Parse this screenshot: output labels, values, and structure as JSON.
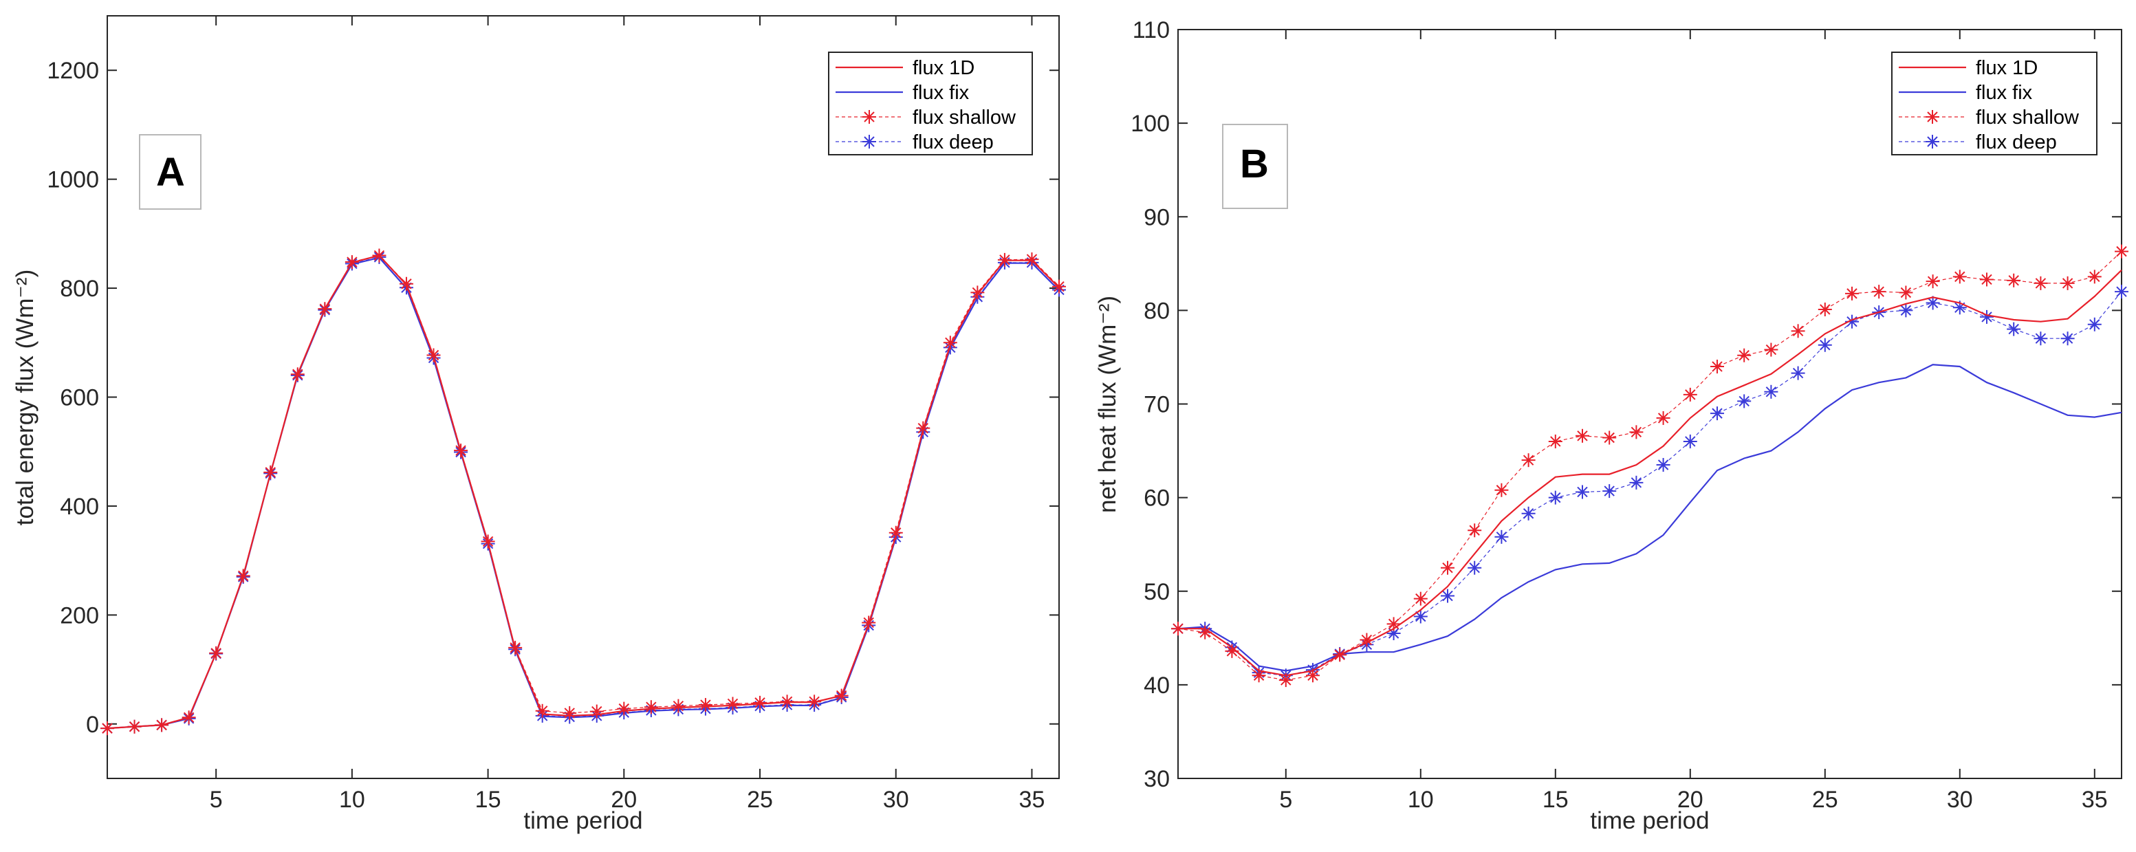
{
  "chart_data": [
    {
      "type": "line",
      "panel_label": "A",
      "xlabel": "time period",
      "ylabel": "total energy flux (Wm⁻²)",
      "xlim": [
        1,
        36
      ],
      "ylim": [
        -100,
        1300
      ],
      "xticks": [
        5,
        10,
        15,
        20,
        25,
        30,
        35
      ],
      "yticks": [
        0,
        200,
        400,
        600,
        800,
        1000,
        1200
      ],
      "legend_position": "top-right",
      "x": [
        1,
        2,
        3,
        4,
        5,
        6,
        7,
        8,
        9,
        10,
        11,
        12,
        13,
        14,
        15,
        16,
        17,
        18,
        19,
        20,
        21,
        22,
        23,
        24,
        25,
        26,
        27,
        28,
        29,
        30,
        31,
        32,
        33,
        34,
        35,
        36
      ],
      "series": [
        {
          "name": "flux 1D",
          "color": "#e8202a",
          "marker": "none",
          "values": [
            -8,
            -5,
            -2,
            12,
            130,
            272,
            460,
            642,
            762,
            847,
            860,
            806,
            675,
            500,
            333,
            138,
            18,
            15,
            17,
            24,
            28,
            30,
            32,
            34,
            37,
            40,
            40,
            52,
            183,
            345,
            540,
            695,
            789,
            851,
            851,
            801
          ]
        },
        {
          "name": "flux fix",
          "color": "#3b3bd9",
          "marker": "none",
          "values": [
            -8,
            -5,
            -2,
            10,
            130,
            270,
            460,
            640,
            760,
            844,
            856,
            800,
            670,
            498,
            330,
            136,
            14,
            12,
            14,
            20,
            24,
            26,
            27,
            29,
            32,
            34,
            34,
            48,
            180,
            342,
            535,
            690,
            782,
            846,
            846,
            796
          ]
        },
        {
          "name": "flux shallow",
          "color": "#e8202a",
          "marker": "star",
          "values": [
            -8,
            -5,
            -2,
            12,
            130,
            272,
            462,
            642,
            762,
            848,
            860,
            808,
            677,
            502,
            335,
            140,
            24,
            20,
            23,
            28,
            31,
            33,
            35,
            37,
            39,
            41,
            41,
            52,
            186,
            351,
            543,
            700,
            792,
            852,
            853,
            803
          ]
        },
        {
          "name": "flux deep",
          "color": "#3b3bd9",
          "marker": "star",
          "values": [
            -8,
            -5,
            -2,
            10,
            129,
            270,
            460,
            640,
            760,
            845,
            857,
            801,
            672,
            499,
            331,
            137,
            15,
            13,
            15,
            21,
            25,
            27,
            28,
            30,
            33,
            35,
            35,
            49,
            181,
            343,
            536,
            691,
            784,
            847,
            847,
            797
          ]
        }
      ]
    },
    {
      "type": "line",
      "panel_label": "B",
      "xlabel": "time period",
      "ylabel": "net heat flux (Wm⁻²)",
      "xlim": [
        1,
        36
      ],
      "ylim": [
        30,
        110
      ],
      "xticks": [
        5,
        10,
        15,
        20,
        25,
        30,
        35
      ],
      "yticks": [
        30,
        40,
        50,
        60,
        70,
        80,
        90,
        100,
        110
      ],
      "legend_position": "top-right",
      "x": [
        1,
        2,
        3,
        4,
        5,
        6,
        7,
        8,
        9,
        10,
        11,
        12,
        13,
        14,
        15,
        16,
        17,
        18,
        19,
        20,
        21,
        22,
        23,
        24,
        25,
        26,
        27,
        28,
        29,
        30,
        31,
        32,
        33,
        34,
        35,
        36
      ],
      "series": [
        {
          "name": "flux 1D",
          "color": "#e8202a",
          "marker": "none",
          "values": [
            46,
            46,
            44,
            41.5,
            41,
            41.5,
            43.2,
            44.5,
            46,
            48,
            50.5,
            54,
            57.5,
            60,
            62.2,
            62.5,
            62.5,
            63.5,
            65.5,
            68.5,
            70.8,
            72,
            73.2,
            75.3,
            77.5,
            79,
            79.8,
            80.7,
            81.4,
            80.8,
            79.5,
            79,
            78.8,
            79.1,
            81.5,
            84.3
          ]
        },
        {
          "name": "flux fix",
          "color": "#3b3bd9",
          "marker": "none",
          "values": [
            46,
            46.2,
            44.5,
            42,
            41.5,
            42,
            43.3,
            43.5,
            43.5,
            44.3,
            45.2,
            47,
            49.3,
            51,
            52.3,
            52.9,
            53,
            54,
            56,
            59.5,
            62.9,
            64.2,
            65,
            67,
            69.5,
            71.5,
            72.3,
            72.8,
            74.2,
            74,
            72.3,
            71.2,
            70,
            68.8,
            68.6,
            69.1
          ]
        },
        {
          "name": "flux shallow",
          "color": "#e8202a",
          "marker": "star",
          "values": [
            46,
            45.6,
            43.6,
            41,
            40.5,
            41,
            43.2,
            44.8,
            46.5,
            49.2,
            52.5,
            56.5,
            60.8,
            64,
            66,
            66.6,
            66.4,
            67,
            68.5,
            71,
            74,
            75.2,
            75.8,
            77.8,
            80.1,
            81.8,
            82,
            81.9,
            83.1,
            83.6,
            83.3,
            83.2,
            82.9,
            82.9,
            83.6,
            86.3
          ]
        },
        {
          "name": "flux deep",
          "color": "#3b3bd9",
          "marker": "star",
          "values": [
            46,
            46,
            44,
            41.3,
            41,
            41.6,
            43.3,
            44.3,
            45.5,
            47.3,
            49.5,
            52.5,
            55.8,
            58.3,
            60,
            60.6,
            60.7,
            61.6,
            63.5,
            66,
            69,
            70.3,
            71.3,
            73.3,
            76.3,
            78.8,
            79.8,
            80,
            80.8,
            80.3,
            79.3,
            78,
            77,
            77,
            78.5,
            82
          ]
        }
      ]
    }
  ]
}
